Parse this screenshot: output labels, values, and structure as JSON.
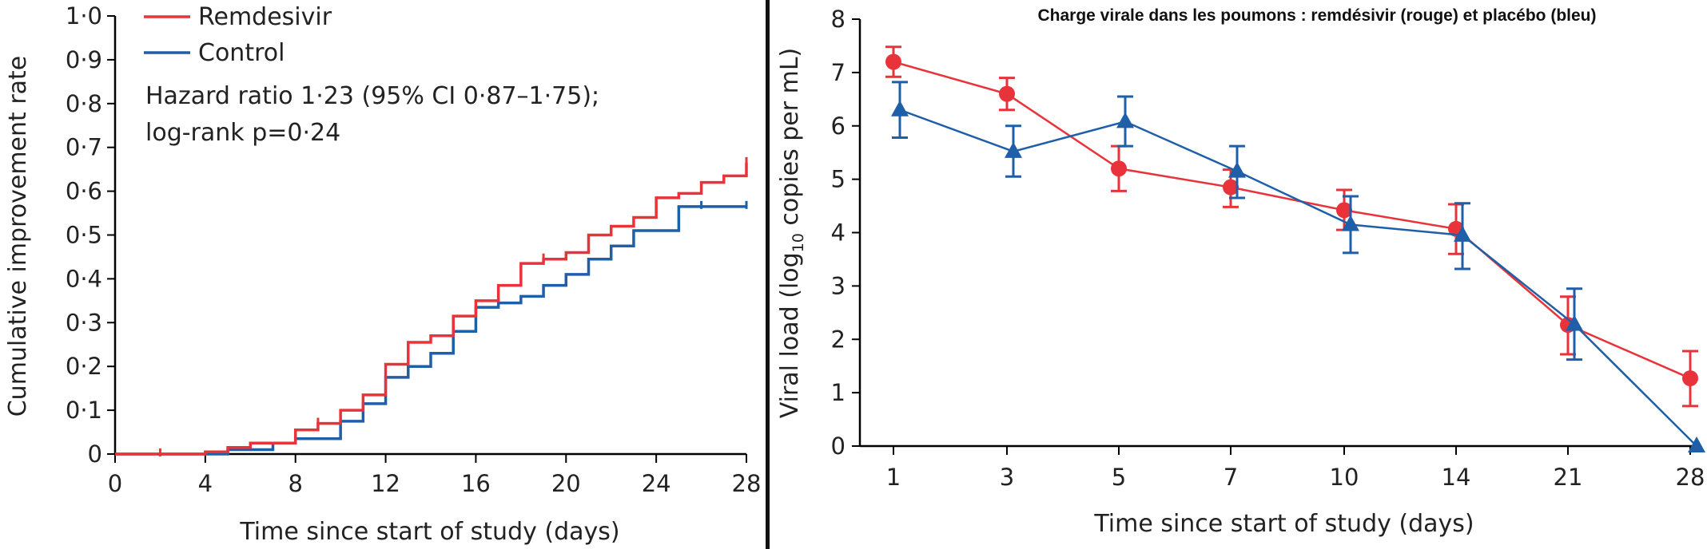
{
  "chart_data": [
    {
      "type": "line",
      "subtype": "step",
      "title": "",
      "xlabel": "Time since start of study (days)",
      "ylabel": "Cumulative improvement rate",
      "xlim": [
        0,
        28
      ],
      "ylim": [
        0,
        1.0
      ],
      "x_ticks": [
        0,
        4,
        8,
        12,
        16,
        20,
        24,
        28
      ],
      "x_tick_labels": [
        "0",
        "4",
        "8",
        "12",
        "16",
        "20",
        "24",
        "28"
      ],
      "y_ticks": [
        0,
        0.1,
        0.2,
        0.3,
        0.4,
        0.5,
        0.6,
        0.7,
        0.8,
        0.9,
        1.0
      ],
      "y_tick_labels": [
        "0",
        "0·1",
        "0·2",
        "0·3",
        "0·4",
        "0·5",
        "0·6",
        "0·7",
        "0·8",
        "0·9",
        "1·0"
      ],
      "grid": false,
      "legend_position": "top-left",
      "annotation_lines": [
        "Hazard ratio 1·23 (95% CI 0·87–1·75);",
        "log-rank p=0·24"
      ],
      "series": [
        {
          "name": "Remdesivir",
          "color": "#e8333a",
          "steps": [
            [
              0,
              0
            ],
            [
              4,
              0.005
            ],
            [
              5,
              0.015
            ],
            [
              6,
              0.025
            ],
            [
              8,
              0.055
            ],
            [
              9,
              0.07
            ],
            [
              10,
              0.1
            ],
            [
              11,
              0.135
            ],
            [
              12,
              0.205
            ],
            [
              13,
              0.255
            ],
            [
              14,
              0.27
            ],
            [
              15,
              0.315
            ],
            [
              16,
              0.35
            ],
            [
              17,
              0.385
            ],
            [
              18,
              0.435
            ],
            [
              19,
              0.445
            ],
            [
              20,
              0.46
            ],
            [
              21,
              0.5
            ],
            [
              22,
              0.52
            ],
            [
              23,
              0.54
            ],
            [
              24,
              0.585
            ],
            [
              25,
              0.595
            ],
            [
              26,
              0.62
            ],
            [
              27,
              0.635
            ],
            [
              28,
              0.665
            ]
          ],
          "censor_x": [
            2,
            9,
            19,
            28
          ]
        },
        {
          "name": "Control",
          "color": "#1f5fa8",
          "steps": [
            [
              0,
              0
            ],
            [
              5,
              0.01
            ],
            [
              7,
              0.025
            ],
            [
              8,
              0.035
            ],
            [
              10,
              0.075
            ],
            [
              11,
              0.115
            ],
            [
              12,
              0.175
            ],
            [
              13,
              0.2
            ],
            [
              14,
              0.23
            ],
            [
              15,
              0.28
            ],
            [
              16,
              0.335
            ],
            [
              17,
              0.345
            ],
            [
              18,
              0.36
            ],
            [
              19,
              0.385
            ],
            [
              20,
              0.41
            ],
            [
              21,
              0.445
            ],
            [
              22,
              0.475
            ],
            [
              23,
              0.51
            ],
            [
              25,
              0.565
            ],
            [
              28,
              0.565
            ]
          ],
          "censor_x": [
            26,
            28
          ]
        }
      ]
    },
    {
      "type": "line",
      "title": "Charge virale dans les poumons : remdésivir (rouge) et placébo (bleu)",
      "xlabel": "Time since start of study (days)",
      "ylabel": "Viral load (log10 copies per mL)",
      "ylabel_parts": [
        "Viral load (log",
        "10",
        " copies per mL)"
      ],
      "categories": [
        "1",
        "3",
        "5",
        "7",
        "10",
        "14",
        "21",
        "28"
      ],
      "ylim": [
        0,
        8
      ],
      "y_ticks": [
        0,
        1,
        2,
        3,
        4,
        5,
        6,
        7,
        8
      ],
      "y_tick_labels": [
        "0",
        "1",
        "2",
        "3",
        "4",
        "5",
        "6",
        "7",
        "8"
      ],
      "grid": false,
      "series": [
        {
          "marker": "circle",
          "color": "#e8333a",
          "values": [
            7.2,
            6.6,
            5.2,
            4.85,
            4.42,
            4.07,
            2.27,
            1.27
          ],
          "err_low": [
            6.92,
            6.3,
            4.78,
            4.48,
            4.05,
            3.6,
            1.72,
            0.75
          ],
          "err_high": [
            7.48,
            6.9,
            5.62,
            5.18,
            4.8,
            4.53,
            2.8,
            1.78
          ]
        },
        {
          "marker": "triangle",
          "color": "#1f5fa8",
          "values": [
            6.3,
            5.52,
            6.08,
            5.15,
            4.15,
            3.95,
            2.28,
            0.0
          ],
          "err_low": [
            5.78,
            5.05,
            5.62,
            4.65,
            3.62,
            3.32,
            1.62,
            0.0
          ],
          "err_high": [
            6.82,
            6.0,
            6.55,
            5.62,
            4.68,
            4.55,
            2.95,
            0.0
          ]
        }
      ]
    }
  ]
}
